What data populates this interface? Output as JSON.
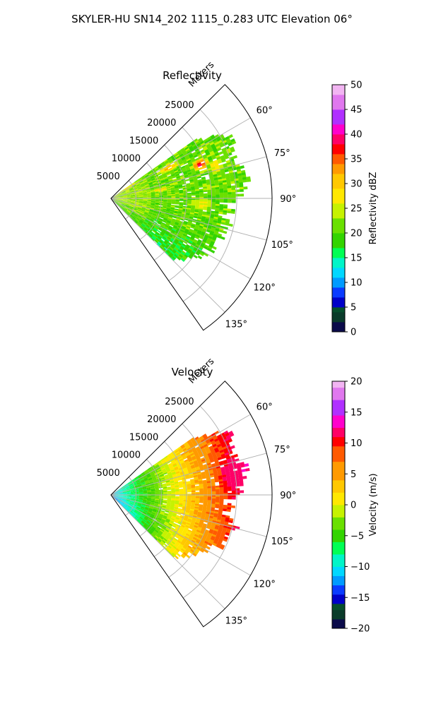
{
  "suptitle": "SKYLER-HU  SN14_202  1115_0.283 UTC Elevation 06°",
  "chart_data": [
    {
      "type": "heatmap",
      "projection": "polar-sector",
      "title": "Reflectivity",
      "radial_label": "Meters",
      "radial_ticks": [
        "5000",
        "10000",
        "15000",
        "20000",
        "25000"
      ],
      "radial_tick_values": [
        5000,
        10000,
        15000,
        20000,
        25000
      ],
      "rmax": 32000,
      "data_rmax": 27500,
      "angle_ticks": [
        "60°",
        "75°",
        "90°",
        "105°",
        "120°",
        "135°"
      ],
      "angle_tick_values": [
        60,
        75,
        90,
        105,
        120,
        135
      ],
      "sector_range": [
        45,
        145
      ],
      "data_azimuth_range": [
        55,
        135
      ],
      "colorbar": {
        "label": "Reflectivity dBZ",
        "min": 0,
        "max": 50,
        "ticks": [
          "0",
          "5",
          "10",
          "15",
          "20",
          "25",
          "30",
          "35",
          "40",
          "45",
          "50"
        ],
        "tick_values": [
          0,
          5,
          10,
          15,
          20,
          25,
          30,
          35,
          40,
          45,
          50
        ]
      },
      "colormap": [
        {
          "v": 0,
          "c": "#0b0b4a"
        },
        {
          "v": 2,
          "c": "#0a3b2a"
        },
        {
          "v": 4,
          "c": "#064f2c"
        },
        {
          "v": 5,
          "c": "#0000c8"
        },
        {
          "v": 7,
          "c": "#0a3bff"
        },
        {
          "v": 9,
          "c": "#009bff"
        },
        {
          "v": 11,
          "c": "#00d8ff"
        },
        {
          "v": 13,
          "c": "#00f5c8"
        },
        {
          "v": 15,
          "c": "#00ff55"
        },
        {
          "v": 17,
          "c": "#33d400"
        },
        {
          "v": 20,
          "c": "#6ae000"
        },
        {
          "v": 23,
          "c": "#c6f200"
        },
        {
          "v": 26,
          "c": "#ffe800"
        },
        {
          "v": 29,
          "c": "#ffc800"
        },
        {
          "v": 32,
          "c": "#ff9a00"
        },
        {
          "v": 34,
          "c": "#ff5a00"
        },
        {
          "v": 36,
          "c": "#ff0000"
        },
        {
          "v": 38,
          "c": "#ff0066"
        },
        {
          "v": 40,
          "c": "#ff00cc"
        },
        {
          "v": 42,
          "c": "#b030ff"
        },
        {
          "v": 45,
          "c": "#e078ee"
        },
        {
          "v": 48,
          "c": "#f2b5f2"
        },
        {
          "v": 50,
          "c": "#fbe0fb"
        }
      ],
      "field": {
        "description_values": "base 19-24 dBZ with maxima ~36-40 dBZ near 19 km / 69°",
        "cells": [
          {
            "az": 69,
            "r": 19000,
            "peak": 38,
            "az_width": 5,
            "r_width": 2500
          },
          {
            "az": 62,
            "r": 13000,
            "peak": 32,
            "az_width": 6,
            "r_width": 4000
          },
          {
            "az": 80,
            "r": 10000,
            "peak": 30,
            "az_width": 5,
            "r_width": 3000
          },
          {
            "az": 73,
            "r": 22000,
            "peak": 29,
            "az_width": 7,
            "r_width": 3000
          },
          {
            "az": 94,
            "r": 18000,
            "peak": 27,
            "az_width": 8,
            "r_width": 5000
          },
          {
            "az": 58,
            "r": 4000,
            "peak": 31,
            "az_width": 4,
            "r_width": 3500
          }
        ],
        "base": 21
      }
    },
    {
      "type": "heatmap",
      "projection": "polar-sector",
      "title": "Velocity",
      "radial_label": "Meters",
      "radial_ticks": [
        "5000",
        "10000",
        "15000",
        "20000",
        "25000"
      ],
      "radial_tick_values": [
        5000,
        10000,
        15000,
        20000,
        25000
      ],
      "rmax": 32000,
      "data_rmax": 27500,
      "angle_ticks": [
        "60°",
        "75°",
        "90°",
        "105°",
        "120°",
        "135°"
      ],
      "angle_tick_values": [
        60,
        75,
        90,
        105,
        120,
        135
      ],
      "sector_range": [
        45,
        145
      ],
      "data_azimuth_range": [
        55,
        135
      ],
      "colorbar": {
        "label": "Velocity (m/s)",
        "min": -20,
        "max": 20,
        "ticks": [
          "−20",
          "−15",
          "−10",
          "−5",
          "0",
          "5",
          "10",
          "15",
          "20"
        ],
        "tick_values": [
          -20,
          -15,
          -10,
          -5,
          0,
          5,
          10,
          15,
          20
        ]
      },
      "colormap": [
        {
          "v": -20,
          "c": "#0b0b4a"
        },
        {
          "v": -18.5,
          "c": "#0a3b2a"
        },
        {
          "v": -17,
          "c": "#064f2c"
        },
        {
          "v": -16,
          "c": "#0000c8"
        },
        {
          "v": -14.5,
          "c": "#0a3bff"
        },
        {
          "v": -13,
          "c": "#009bff"
        },
        {
          "v": -11.5,
          "c": "#00d8ff"
        },
        {
          "v": -10,
          "c": "#00f5c8"
        },
        {
          "v": -8,
          "c": "#00ff55"
        },
        {
          "v": -6,
          "c": "#33d400"
        },
        {
          "v": -4,
          "c": "#6ae000"
        },
        {
          "v": -2,
          "c": "#c6f200"
        },
        {
          "v": 0,
          "c": "#ffe800"
        },
        {
          "v": 2,
          "c": "#ffc800"
        },
        {
          "v": 4,
          "c": "#ff9a00"
        },
        {
          "v": 7,
          "c": "#ff5a00"
        },
        {
          "v": 9.5,
          "c": "#ff0000"
        },
        {
          "v": 11,
          "c": "#ff0066"
        },
        {
          "v": 12.5,
          "c": "#ff00cc"
        },
        {
          "v": 14.5,
          "c": "#b030ff"
        },
        {
          "v": 17,
          "c": "#e078ee"
        },
        {
          "v": 19,
          "c": "#f2b5f2"
        },
        {
          "v": 20,
          "c": "#fbe0fb"
        }
      ],
      "field": {
        "description_values": "≈ −10 m/s near radar rising to ≈ +8 m/s at 22 km, ≈ +12 m/s at 22-27 km / 70-90°",
        "cells": [
          {
            "az": 80,
            "r": 24500,
            "peak": 12.5,
            "az_width": 8,
            "r_width": 2500
          }
        ],
        "base": 0
      }
    }
  ]
}
